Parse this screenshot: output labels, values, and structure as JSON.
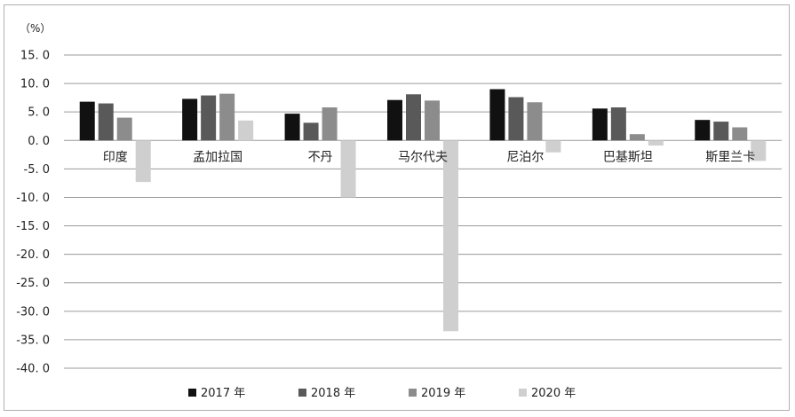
{
  "chart_data": {
    "type": "bar",
    "unit_label": "（%）",
    "categories": [
      "印度",
      "孟加拉国",
      "不丹",
      "马尔代夫",
      "尼泊尔",
      "巴基斯坦",
      "斯里兰卡"
    ],
    "series": [
      {
        "name": "2017 年",
        "color": "#111111",
        "values": [
          6.8,
          7.3,
          4.7,
          7.1,
          9.0,
          5.6,
          3.6
        ]
      },
      {
        "name": "2018 年",
        "color": "#595959",
        "values": [
          6.5,
          7.9,
          3.1,
          8.1,
          7.6,
          5.8,
          3.3
        ]
      },
      {
        "name": "2019 年",
        "color": "#8c8c8c",
        "values": [
          4.0,
          8.2,
          5.8,
          7.0,
          6.7,
          1.1,
          2.3
        ]
      },
      {
        "name": "2020 年",
        "color": "#cfcfcf",
        "values": [
          -7.3,
          3.5,
          -10.0,
          -33.5,
          -2.1,
          -0.9,
          -3.6
        ]
      }
    ],
    "yticks": [
      "15. 0",
      "10. 0",
      "5. 0",
      "0. 0",
      "-5. 0",
      "-10. 0",
      "-15. 0",
      "-20. 0",
      "-25. 0",
      "-30. 0",
      "-35. 0",
      "-40. 0"
    ],
    "ylim": [
      -40,
      15
    ],
    "grid": true,
    "legend_position": "bottom"
  }
}
